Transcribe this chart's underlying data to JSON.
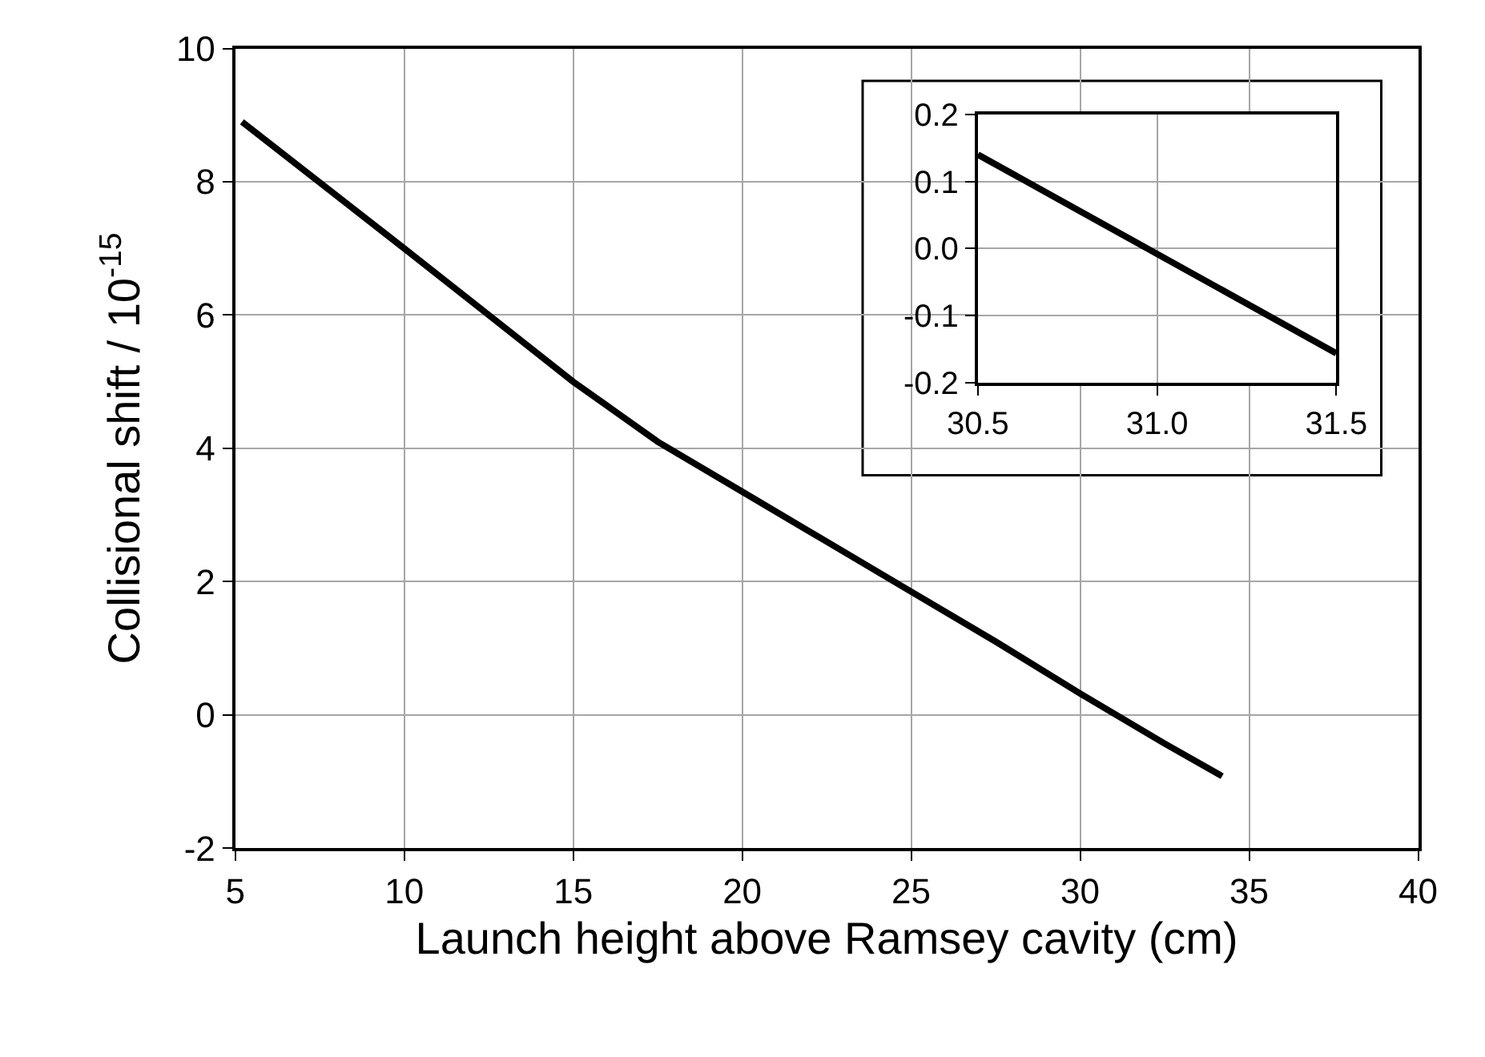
{
  "chart_data": [
    {
      "type": "line",
      "xlabel": "Launch height above Ramsey cavity (cm)",
      "ylabel": "Collisional shift / 10$^{-15}$",
      "x": [
        5.2,
        10,
        12.5,
        15,
        17.5,
        20,
        22.5,
        25,
        27.5,
        30,
        32.5,
        34.2
      ],
      "series": [
        {
          "color": "#000000",
          "values": [
            8.9,
            7.0,
            6.0,
            5.0,
            4.1,
            3.35,
            2.6,
            1.85,
            1.1,
            0.32,
            -0.43,
            -0.92
          ]
        }
      ],
      "xlim": [
        5,
        40
      ],
      "xticks": [
        5,
        10,
        15,
        20,
        25,
        30,
        35,
        40
      ],
      "ylim": [
        -2,
        10
      ],
      "yticks": [
        -2,
        0,
        2,
        4,
        6,
        8,
        10
      ],
      "grid": true,
      "line_style": "solid"
    },
    {
      "type": "line",
      "x": [
        30.5,
        31.5
      ],
      "series": [
        {
          "color": "#000000",
          "values": [
            0.14,
            -0.156
          ]
        }
      ],
      "xlim": [
        30.5,
        31.5
      ],
      "xticks": [
        30.5,
        {
          "value": 31,
          "label": "31.0"
        },
        31.5
      ],
      "ylim": [
        -0.2,
        0.2
      ],
      "yticks": [
        -0.2,
        -0.1,
        {
          "value": 0,
          "label": "0.0"
        },
        0.1,
        0.2
      ],
      "grid": true,
      "line_style": "solid"
    }
  ]
}
